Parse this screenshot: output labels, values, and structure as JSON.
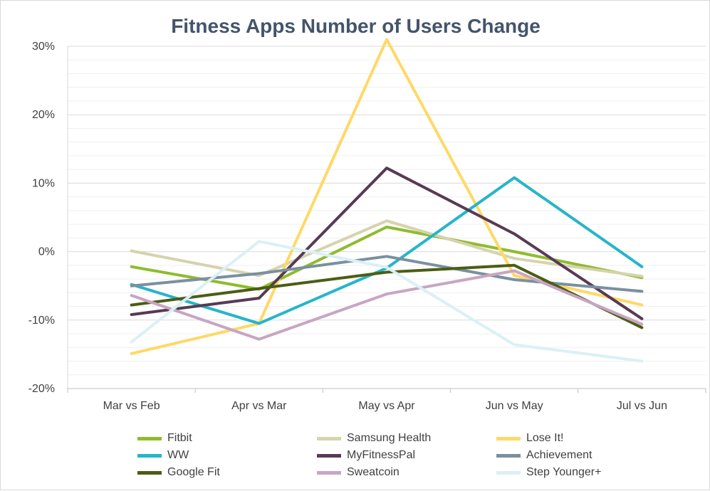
{
  "chart_data": {
    "type": "line",
    "title": "Fitness Apps Number of Users Change",
    "xlabel": "",
    "ylabel": "",
    "categories": [
      "Mar vs Feb",
      "Apr vs Mar",
      "May vs Apr",
      "Jun vs May",
      "Jul vs Jun"
    ],
    "ylim": [
      -20,
      30
    ],
    "yticks": [
      -20,
      -10,
      0,
      10,
      20,
      30
    ],
    "ytick_labels": [
      "-20%",
      "-10%",
      "0%",
      "10%",
      "20%",
      "30%"
    ],
    "grid": true,
    "legend_position": "bottom",
    "series": [
      {
        "name": "Fitbit",
        "color": "#8ebc2e",
        "values": [
          -2.2,
          -5.5,
          3.6,
          0.0,
          -3.8
        ]
      },
      {
        "name": "Samsung Health",
        "color": "#d6d3ad",
        "values": [
          0.1,
          -3.5,
          4.5,
          -1.0,
          -3.6
        ]
      },
      {
        "name": "Lose It!",
        "color": "#ffd966",
        "values": [
          -14.9,
          -10.5,
          31.0,
          -3.5,
          -7.8
        ]
      },
      {
        "name": "WW",
        "color": "#26b5c9",
        "values": [
          -4.8,
          -10.5,
          -2.4,
          10.8,
          -2.2
        ]
      },
      {
        "name": "MyFitnessPal",
        "color": "#573a55",
        "values": [
          -9.2,
          -6.8,
          12.2,
          2.6,
          -9.8
        ]
      },
      {
        "name": "Achievement",
        "color": "#7a909f",
        "values": [
          -5.0,
          -3.2,
          -0.7,
          -4.1,
          -5.8
        ]
      },
      {
        "name": "Google Fit",
        "color": "#4b5d14",
        "values": [
          -7.8,
          -5.4,
          -3.0,
          -2.0,
          -11.1
        ]
      },
      {
        "name": "Sweatcoin",
        "color": "#c8a5c3",
        "values": [
          -6.4,
          -12.8,
          -6.2,
          -2.8,
          -10.6
        ]
      },
      {
        "name": "Step Younger+",
        "color": "#daf0f6",
        "values": [
          -13.2,
          1.5,
          -2.3,
          -13.6,
          -16.0
        ]
      }
    ]
  }
}
